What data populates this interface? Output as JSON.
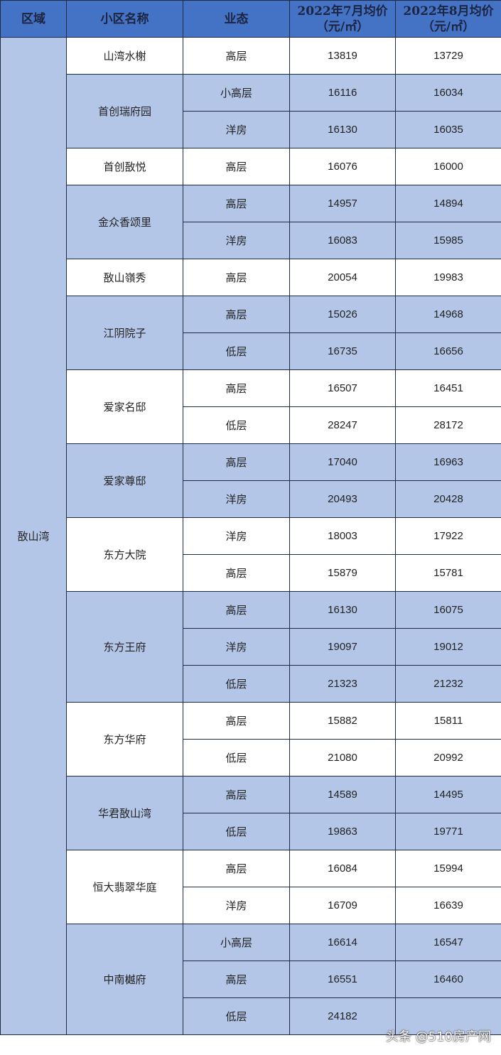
{
  "header": {
    "area": "区域",
    "name": "小区名称",
    "type": "业态",
    "jul": "2022年7月均价",
    "aug": "2022年8月均价",
    "unit": "（元/㎡）"
  },
  "area": "敔山湾",
  "groups": [
    {
      "name": "山湾水榭",
      "rows": [
        [
          "高层",
          "13819",
          "13729"
        ]
      ]
    },
    {
      "name": "首创瑞府园",
      "rows": [
        [
          "小高层",
          "16116",
          "16034"
        ],
        [
          "洋房",
          "16130",
          "16035"
        ]
      ]
    },
    {
      "name": "首创敔悦",
      "rows": [
        [
          "高层",
          "16076",
          "16000"
        ]
      ]
    },
    {
      "name": "金众香颂里",
      "rows": [
        [
          "高层",
          "14957",
          "14894"
        ],
        [
          "洋房",
          "16083",
          "15985"
        ]
      ]
    },
    {
      "name": "敔山嶺秀",
      "rows": [
        [
          "高层",
          "20054",
          "19983"
        ]
      ]
    },
    {
      "name": "江阴院子",
      "rows": [
        [
          "高层",
          "15026",
          "14968"
        ],
        [
          "低层",
          "16735",
          "16656"
        ]
      ]
    },
    {
      "name": "爱家名邸",
      "rows": [
        [
          "高层",
          "16507",
          "16451"
        ],
        [
          "低层",
          "28247",
          "28172"
        ]
      ]
    },
    {
      "name": "爱家尊邸",
      "rows": [
        [
          "高层",
          "17040",
          "16963"
        ],
        [
          "洋房",
          "20493",
          "20428"
        ]
      ]
    },
    {
      "name": "东方大院",
      "rows": [
        [
          "洋房",
          "18003",
          "17922"
        ],
        [
          "高层",
          "15879",
          "15781"
        ]
      ]
    },
    {
      "name": "东方王府",
      "rows": [
        [
          "高层",
          "16130",
          "16075"
        ],
        [
          "洋房",
          "19097",
          "19012"
        ],
        [
          "低层",
          "21323",
          "21232"
        ]
      ]
    },
    {
      "name": "东方华府",
      "rows": [
        [
          "高层",
          "15882",
          "15811"
        ],
        [
          "低层",
          "21080",
          "20992"
        ]
      ]
    },
    {
      "name": "华君敔山湾",
      "rows": [
        [
          "高层",
          "14589",
          "14495"
        ],
        [
          "低层",
          "19863",
          "19771"
        ]
      ]
    },
    {
      "name": "恒大翡翠华庭",
      "rows": [
        [
          "高层",
          "16084",
          "15994"
        ],
        [
          "洋房",
          "16709",
          "16639"
        ]
      ]
    },
    {
      "name": "中南樾府",
      "rows": [
        [
          "小高层",
          "16614",
          "16547"
        ],
        [
          "高层",
          "16551",
          "16460"
        ],
        [
          "低层",
          "24182",
          ""
        ]
      ]
    }
  ],
  "watermark": "头条 @510房产网",
  "colors": {
    "header": "#4472c4",
    "band": "#b4c6e7",
    "white": "#ffffff"
  }
}
